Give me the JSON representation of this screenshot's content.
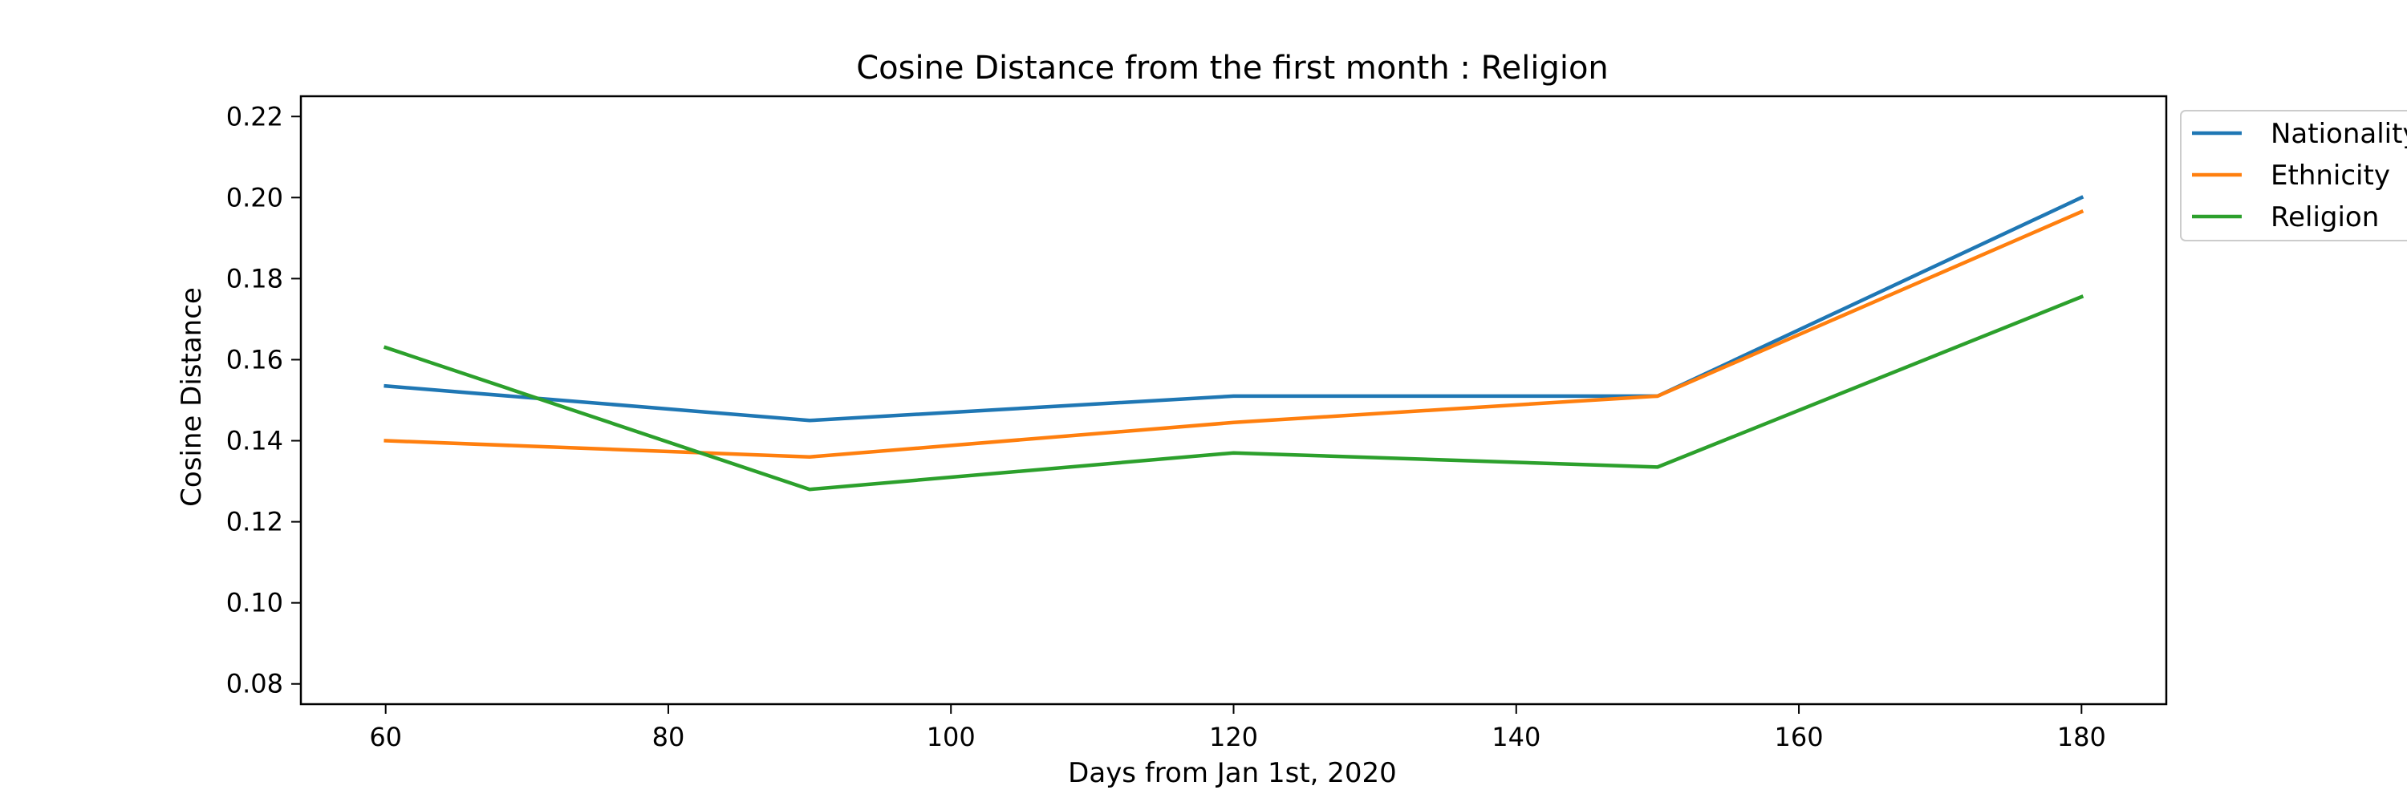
{
  "chart_data": {
    "type": "line",
    "title": "Cosine Distance from the first month : Religion",
    "xlabel": "Days from Jan 1st, 2020",
    "ylabel": "Cosine Distance",
    "x": [
      60,
      90,
      120,
      150,
      180
    ],
    "xlim": [
      54,
      186
    ],
    "ylim": [
      0.075,
      0.225
    ],
    "xticks": [
      60,
      80,
      100,
      120,
      140,
      160,
      180
    ],
    "yticks": [
      "0.08",
      "0.10",
      "0.12",
      "0.14",
      "0.16",
      "0.18",
      "0.20",
      "0.22"
    ],
    "grid": false,
    "legend_position": "outside-top-right",
    "series": [
      {
        "name": "Nationality",
        "color": "#1f77b4",
        "values": [
          0.1535,
          0.145,
          0.151,
          0.151,
          0.2
        ]
      },
      {
        "name": "Ethnicity",
        "color": "#ff7f0e",
        "values": [
          0.14,
          0.136,
          0.1445,
          0.151,
          0.1965
        ]
      },
      {
        "name": "Religion",
        "color": "#2ca02c",
        "values": [
          0.163,
          0.128,
          0.137,
          0.1335,
          0.1755
        ]
      }
    ]
  }
}
